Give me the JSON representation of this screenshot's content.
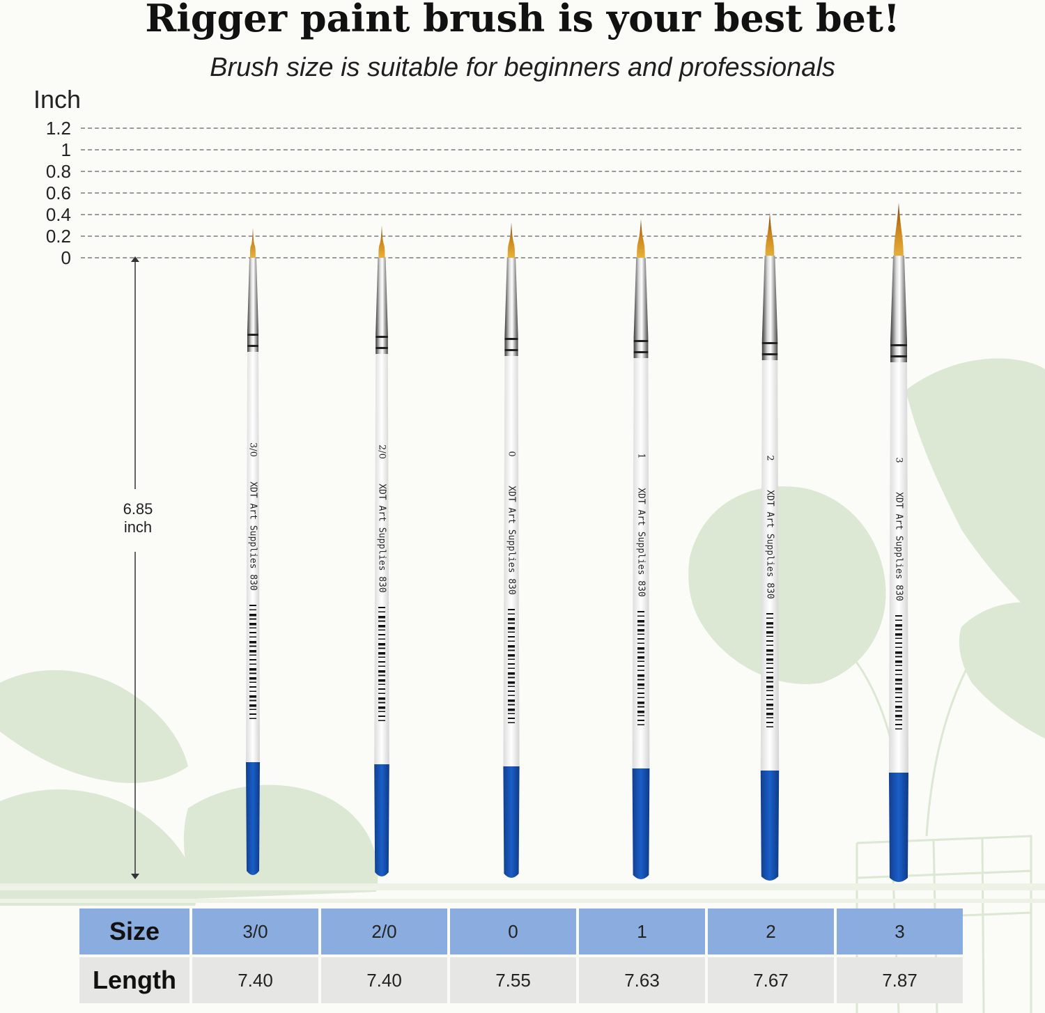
{
  "heading": {
    "title": "Rigger paint brush is your best bet!",
    "subtitle": "Brush size is suitable for beginners and professionals"
  },
  "scale": {
    "unit_label": "Inch",
    "ticks": [
      "1.2",
      "1",
      "0.8",
      "0.6",
      "0.4",
      "0.2",
      "0"
    ]
  },
  "measurement": {
    "value": "6.85",
    "unit": "inch"
  },
  "brushes": [
    {
      "size_mark": "3/0",
      "brand_text": "XDT   Art Supplies 830",
      "hair_length_in": 0.28
    },
    {
      "size_mark": "2/0",
      "brand_text": "XDT   Art Supplies 830",
      "hair_length_in": 0.3
    },
    {
      "size_mark": "0",
      "brand_text": "XDT   Art Supplies 830",
      "hair_length_in": 0.33
    },
    {
      "size_mark": "1",
      "brand_text": "XDT   Art Supplies 830",
      "hair_length_in": 0.36
    },
    {
      "size_mark": "2",
      "brand_text": "XDT   Art Supplies 830",
      "hair_length_in": 0.42
    },
    {
      "size_mark": "3",
      "brand_text": "XDT   Art Supplies 830",
      "hair_length_in": 0.51
    }
  ],
  "spec_table": {
    "size_header": "Size",
    "length_header": "Length",
    "sizes": [
      "3/0",
      "2/0",
      "0",
      "1",
      "2",
      "3"
    ],
    "lengths": [
      "7.40",
      "7.40",
      "7.55",
      "7.63",
      "7.67",
      "7.87"
    ]
  },
  "colors": {
    "handle_tip": "#1a5fc8",
    "ferrule": "#8c8c8c",
    "hair": "#c8821c",
    "header_row": "#8bacde",
    "value_row": "#e6e6e4",
    "leaves": "#dbe6d3"
  }
}
